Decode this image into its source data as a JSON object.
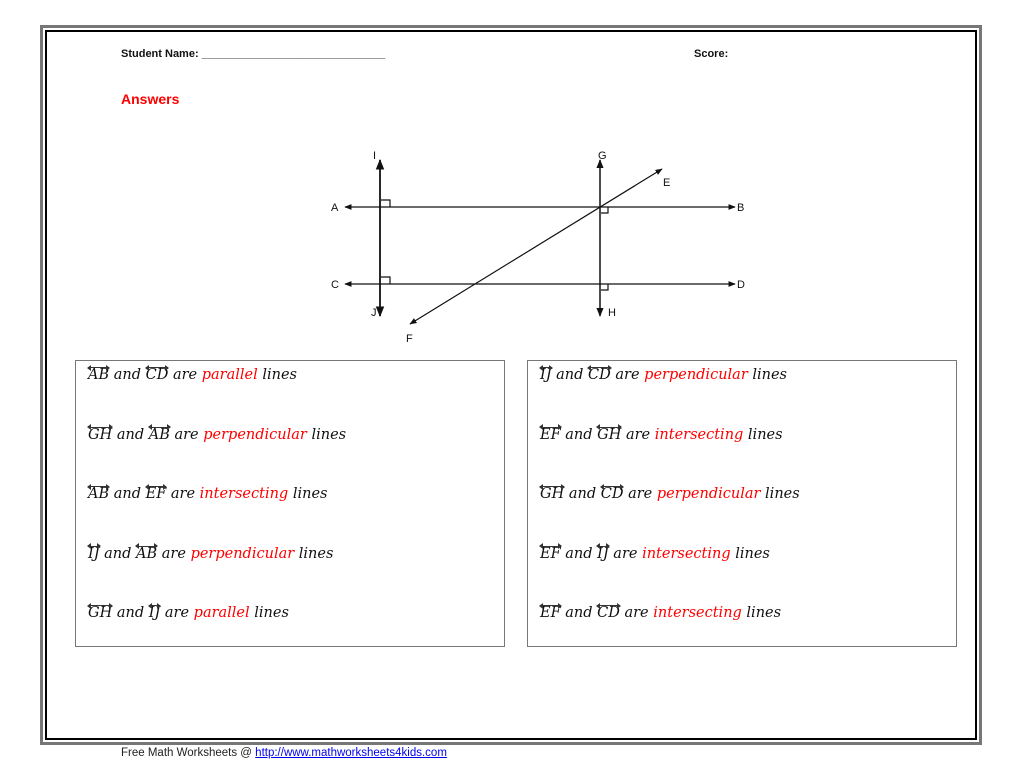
{
  "header": {
    "student_name_label": "Student Name: ______________________________",
    "score_label": "Score:"
  },
  "answers_title": "Answers",
  "diagram": {
    "points": {
      "A": "A",
      "B": "B",
      "C": "C",
      "D": "D",
      "E": "E",
      "F": "F",
      "G": "G",
      "H": "H",
      "I": "I",
      "J": "J"
    }
  },
  "words": {
    "and": "and",
    "are": "are",
    "lines": "lines"
  },
  "left_box": [
    {
      "a": "AB",
      "b": "CD",
      "relation": "parallel"
    },
    {
      "a": "GH",
      "b": "AB",
      "relation": "perpendicular"
    },
    {
      "a": "AB",
      "b": "EF",
      "relation": "intersecting"
    },
    {
      "a": "IJ",
      "b": "AB",
      "relation": "perpendicular"
    },
    {
      "a": "GH",
      "b": "IJ",
      "relation": "parallel"
    }
  ],
  "right_box": [
    {
      "a": "IJ",
      "b": "CD",
      "relation": "perpendicular"
    },
    {
      "a": "EF",
      "b": "GH",
      "relation": "intersecting"
    },
    {
      "a": "GH",
      "b": "CD",
      "relation": "perpendicular"
    },
    {
      "a": "EF",
      "b": "IJ",
      "relation": "intersecting"
    },
    {
      "a": "EF",
      "b": "CD",
      "relation": "intersecting"
    }
  ],
  "footer": {
    "text": "Free Math Worksheets @ ",
    "link": "http://www.mathworksheets4kids.com"
  },
  "colors": {
    "answer": "#ff0000",
    "link": "#0000ee"
  }
}
